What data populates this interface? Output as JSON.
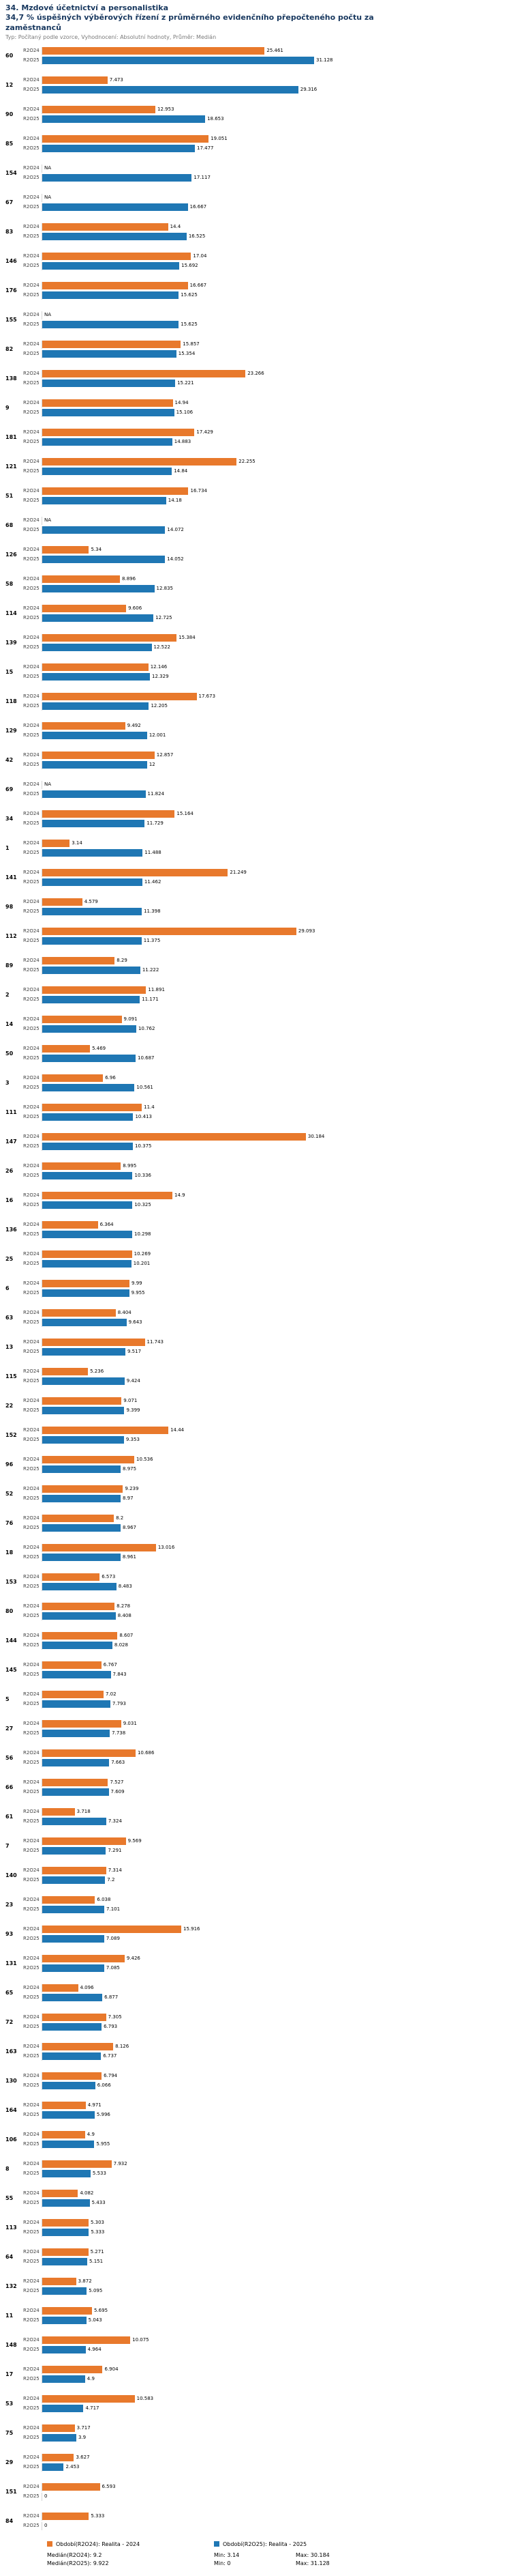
{
  "header": {
    "title": "34. Mzdové účetnictví a personalistika",
    "subtitle_line1": "34,7 % úspěšných výběrových řízení z průměrného evidenčního přepočteného počtu za",
    "subtitle_line2": "zaměstnanců",
    "meta": "Typ: Počítaný podle vzorce, Vyhodnocení: Absolutní hodnoty, Průměr: Medián"
  },
  "chart_data": {
    "type": "bar",
    "orientation": "horizontal",
    "title": "34. Mzdové účetnictví a personalistika",
    "xlim": [
      0,
      31.128
    ],
    "grid": false,
    "value_labels": true,
    "legend_position": "bottom",
    "sort": "by R2O25 descending",
    "series": [
      {
        "key": "R2O24",
        "name": "Období(R2O24): Realita - 2024",
        "color": "#e8792c"
      },
      {
        "key": "R2O25",
        "name": "Období(R2O25): Realita - 2025",
        "color": "#1f77b4"
      }
    ],
    "groups": [
      {
        "id": "60",
        "R2O24": "25.461",
        "R2O25": "31.128"
      },
      {
        "id": "12",
        "R2O24": "7.473",
        "R2O25": "29.316"
      },
      {
        "id": "90",
        "R2O24": "12.953",
        "R2O25": "18.653"
      },
      {
        "id": "85",
        "R2O24": "19.051",
        "R2O25": "17.477"
      },
      {
        "id": "154",
        "R2O24": "NA",
        "R2O25": "17.117"
      },
      {
        "id": "67",
        "R2O24": "NA",
        "R2O25": "16.667"
      },
      {
        "id": "83",
        "R2O24": "14.4",
        "R2O25": "16.525"
      },
      {
        "id": "146",
        "R2O24": "17.04",
        "R2O25": "15.692"
      },
      {
        "id": "176",
        "R2O24": "16.667",
        "R2O25": "15.625"
      },
      {
        "id": "155",
        "R2O24": "NA",
        "R2O25": "15.625"
      },
      {
        "id": "82",
        "R2O24": "15.857",
        "R2O25": "15.354"
      },
      {
        "id": "138",
        "R2O24": "23.266",
        "R2O25": "15.221"
      },
      {
        "id": "9",
        "R2O24": "14.94",
        "R2O25": "15.106"
      },
      {
        "id": "181",
        "R2O24": "17.429",
        "R2O25": "14.883"
      },
      {
        "id": "121",
        "R2O24": "22.255",
        "R2O25": "14.84"
      },
      {
        "id": "51",
        "R2O24": "16.734",
        "R2O25": "14.18"
      },
      {
        "id": "68",
        "R2O24": "NA",
        "R2O25": "14.072"
      },
      {
        "id": "126",
        "R2O24": "5.34",
        "R2O25": "14.052"
      },
      {
        "id": "58",
        "R2O24": "8.896",
        "R2O25": "12.835"
      },
      {
        "id": "114",
        "R2O24": "9.606",
        "R2O25": "12.725"
      },
      {
        "id": "139",
        "R2O24": "15.384",
        "R2O25": "12.522"
      },
      {
        "id": "15",
        "R2O24": "12.146",
        "R2O25": "12.329"
      },
      {
        "id": "118",
        "R2O24": "17.673",
        "R2O25": "12.205"
      },
      {
        "id": "129",
        "R2O24": "9.492",
        "R2O25": "12.001"
      },
      {
        "id": "42",
        "R2O24": "12.857",
        "R2O25": "12"
      },
      {
        "id": "69",
        "R2O24": "NA",
        "R2O25": "11.824"
      },
      {
        "id": "34",
        "R2O24": "15.164",
        "R2O25": "11.729"
      },
      {
        "id": "1",
        "R2O24": "3.14",
        "R2O25": "11.488"
      },
      {
        "id": "141",
        "R2O24": "21.249",
        "R2O25": "11.462"
      },
      {
        "id": "98",
        "R2O24": "4.579",
        "R2O25": "11.398"
      },
      {
        "id": "112",
        "R2O24": "29.093",
        "R2O25": "11.375"
      },
      {
        "id": "89",
        "R2O24": "8.29",
        "R2O25": "11.222"
      },
      {
        "id": "2",
        "R2O24": "11.891",
        "R2O25": "11.171"
      },
      {
        "id": "14",
        "R2O24": "9.091",
        "R2O25": "10.762"
      },
      {
        "id": "50",
        "R2O24": "5.469",
        "R2O25": "10.687"
      },
      {
        "id": "3",
        "R2O24": "6.96",
        "R2O25": "10.561"
      },
      {
        "id": "111",
        "R2O24": "11.4",
        "R2O25": "10.413"
      },
      {
        "id": "147",
        "R2O24": "30.184",
        "R2O25": "10.375"
      },
      {
        "id": "26",
        "R2O24": "8.995",
        "R2O25": "10.336"
      },
      {
        "id": "16",
        "R2O24": "14.9",
        "R2O25": "10.325"
      },
      {
        "id": "136",
        "R2O24": "6.364",
        "R2O25": "10.298"
      },
      {
        "id": "25",
        "R2O24": "10.269",
        "R2O25": "10.201"
      },
      {
        "id": "6",
        "R2O24": "9.99",
        "R2O25": "9.955"
      },
      {
        "id": "63",
        "R2O24": "8.404",
        "R2O25": "9.643"
      },
      {
        "id": "13",
        "R2O24": "11.743",
        "R2O25": "9.517"
      },
      {
        "id": "115",
        "R2O24": "5.236",
        "R2O25": "9.424"
      },
      {
        "id": "22",
        "R2O24": "9.071",
        "R2O25": "9.399"
      },
      {
        "id": "152",
        "R2O24": "14.44",
        "R2O25": "9.353"
      },
      {
        "id": "96",
        "R2O24": "10.536",
        "R2O25": "8.975"
      },
      {
        "id": "52",
        "R2O24": "9.239",
        "R2O25": "8.97"
      },
      {
        "id": "76",
        "R2O24": "8.2",
        "R2O25": "8.967"
      },
      {
        "id": "18",
        "R2O24": "13.016",
        "R2O25": "8.961"
      },
      {
        "id": "153",
        "R2O24": "6.573",
        "R2O25": "8.483"
      },
      {
        "id": "80",
        "R2O24": "8.278",
        "R2O25": "8.408"
      },
      {
        "id": "144",
        "R2O24": "8.607",
        "R2O25": "8.028"
      },
      {
        "id": "145",
        "R2O24": "6.767",
        "R2O25": "7.843"
      },
      {
        "id": "5",
        "R2O24": "7.02",
        "R2O25": "7.793"
      },
      {
        "id": "27",
        "R2O24": "9.031",
        "R2O25": "7.738"
      },
      {
        "id": "56",
        "R2O24": "10.686",
        "R2O25": "7.663"
      },
      {
        "id": "66",
        "R2O24": "7.527",
        "R2O25": "7.609"
      },
      {
        "id": "61",
        "R2O24": "3.718",
        "R2O25": "7.324"
      },
      {
        "id": "7",
        "R2O24": "9.569",
        "R2O25": "7.291"
      },
      {
        "id": "140",
        "R2O24": "7.314",
        "R2O25": "7.2"
      },
      {
        "id": "23",
        "R2O24": "6.038",
        "R2O25": "7.101"
      },
      {
        "id": "93",
        "R2O24": "15.916",
        "R2O25": "7.089"
      },
      {
        "id": "131",
        "R2O24": "9.426",
        "R2O25": "7.085"
      },
      {
        "id": "65",
        "R2O24": "4.096",
        "R2O25": "6.877"
      },
      {
        "id": "72",
        "R2O24": "7.305",
        "R2O25": "6.793"
      },
      {
        "id": "163",
        "R2O24": "8.126",
        "R2O25": "6.737"
      },
      {
        "id": "130",
        "R2O24": "6.794",
        "R2O25": "6.066"
      },
      {
        "id": "164",
        "R2O24": "4.971",
        "R2O25": "5.996"
      },
      {
        "id": "106",
        "R2O24": "4.9",
        "R2O25": "5.955"
      },
      {
        "id": "8",
        "R2O24": "7.932",
        "R2O25": "5.533"
      },
      {
        "id": "55",
        "R2O24": "4.082",
        "R2O25": "5.433"
      },
      {
        "id": "113",
        "R2O24": "5.303",
        "R2O25": "5.333"
      },
      {
        "id": "64",
        "R2O24": "5.271",
        "R2O25": "5.151"
      },
      {
        "id": "132",
        "R2O24": "3.872",
        "R2O25": "5.095"
      },
      {
        "id": "11",
        "R2O24": "5.695",
        "R2O25": "5.043"
      },
      {
        "id": "148",
        "R2O24": "10.075",
        "R2O25": "4.964"
      },
      {
        "id": "17",
        "R2O24": "6.904",
        "R2O25": "4.9"
      },
      {
        "id": "53",
        "R2O24": "10.583",
        "R2O25": "4.717"
      },
      {
        "id": "75",
        "R2O24": "3.717",
        "R2O25": "3.9"
      },
      {
        "id": "29",
        "R2O24": "3.627",
        "R2O25": "2.453"
      },
      {
        "id": "151",
        "R2O24": "6.593",
        "R2O25": "0"
      },
      {
        "id": "84",
        "R2O24": "5.333",
        "R2O25": "0"
      }
    ]
  },
  "footer": {
    "legend": [
      {
        "label": "Období(R2O24): Realita - 2024",
        "color": "#e8792c"
      },
      {
        "label": "Období(R2O25): Realita - 2025",
        "color": "#1f77b4"
      }
    ],
    "stats": [
      {
        "median": "Medián(R2O24): 9.2",
        "min": "Min: 3.14",
        "max": "Max: 30.184"
      },
      {
        "median": "Medián(R2O25): 9.922",
        "min": "Min: 0",
        "max": "Max: 31.128"
      }
    ]
  }
}
